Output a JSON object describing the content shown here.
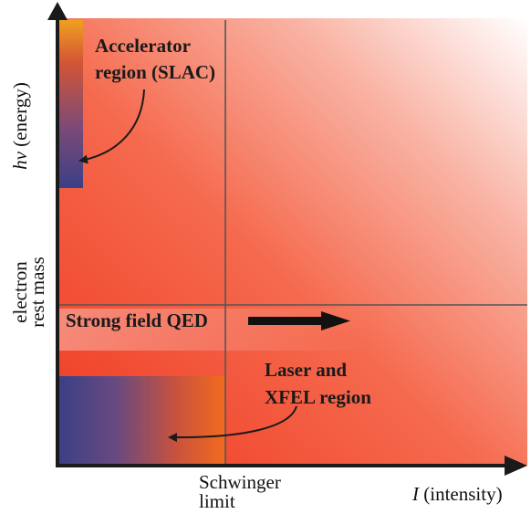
{
  "axes": {
    "y_label_italic": "hν",
    "y_label_rest": " (energy)",
    "x_label_italic": "I",
    "x_label_rest": " (intensity)",
    "y_tick_line1": "electron",
    "y_tick_line2": "rest mass",
    "x_tick_line1": "Schwinger",
    "x_tick_line2": "limit"
  },
  "regions": {
    "accelerator_line1": "Accelerator",
    "accelerator_line2": "region (SLAC)",
    "laser_line1": "Laser and",
    "laser_line2": "XFEL region",
    "qed": "Strong field QED"
  },
  "colors": {
    "field_red": "#f0442b",
    "field_white": "#ffffff",
    "region_blue": "#3b3f86",
    "region_orange": "#f26a22",
    "axis": "#1a1a1a"
  }
}
